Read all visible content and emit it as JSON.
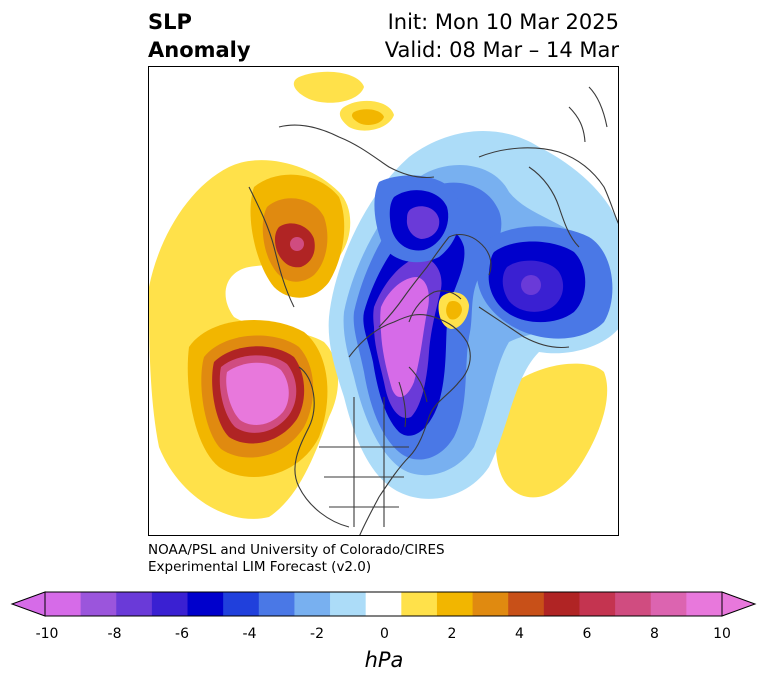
{
  "title": {
    "variable_line1": "SLP",
    "variable_line2": "Anomaly",
    "init_line": "Init: Mon 10 Mar 2025",
    "valid_line": "Valid: 08 Mar – 14 Mar"
  },
  "credit": {
    "line1": "NOAA/PSL and University of Colorado/CIRES",
    "line2": "Experimental LIM Forecast (v2.0)"
  },
  "colorbar": {
    "unit": "hPa",
    "tick_labels": [
      "-10",
      "-8",
      "-6",
      "-4",
      "-2",
      "0",
      "2",
      "4",
      "6",
      "8",
      "10"
    ],
    "colors": [
      "#d66be8",
      "#9b55dc",
      "#6a3ad8",
      "#3a20d2",
      "#0000cc",
      "#2040dc",
      "#4a78e6",
      "#78b0f0",
      "#acdcf8",
      "#ffffff",
      "#ffe14a",
      "#f2b600",
      "#e08a10",
      "#c85018",
      "#b02424",
      "#c43450",
      "#d04c80",
      "#dc64b0",
      "#e878dc"
    ],
    "low_end_color": "#d66be8",
    "high_end_color": "#e878dc"
  },
  "map": {
    "projection": "north-polar-stereographic",
    "region": "Northern Hemisphere (North America, Arctic, Europe/Asia)",
    "features": [
      {
        "name": "strong negative anomaly over Canada / Hudson Bay",
        "level_hPa": -10
      },
      {
        "name": "negative anomaly over Arctic north of Siberia",
        "level_hPa": -7
      },
      {
        "name": "negative anomaly over Europe / western Russia",
        "level_hPa": -7
      },
      {
        "name": "strong positive anomaly over NE Pacific",
        "level_hPa": 10
      },
      {
        "name": "positive anomaly over East Asia / Mongolia",
        "level_hPa": 6
      },
      {
        "name": "weak positive anomaly over central North Atlantic",
        "level_hPa": 2
      }
    ]
  }
}
